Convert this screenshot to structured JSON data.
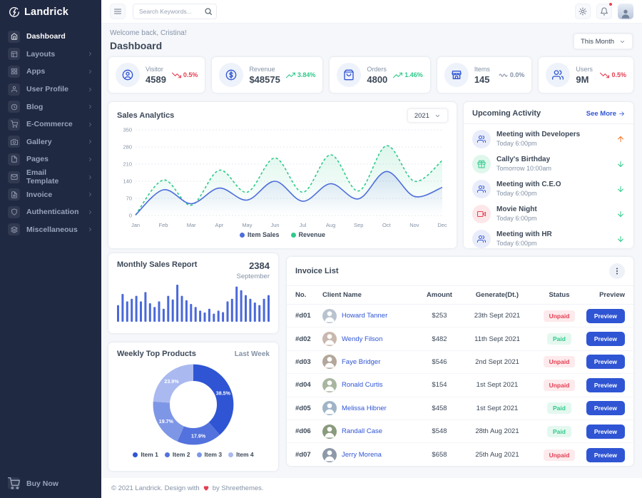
{
  "brand": {
    "name": "Landrick"
  },
  "topbar": {
    "search_placeholder": "Search Keywords..."
  },
  "header": {
    "welcome": "Welcome back, Cristina!",
    "title": "Dashboard",
    "period": "This Month"
  },
  "sidebar": {
    "buy_now": "Buy Now",
    "items": [
      {
        "label": "Dashboard",
        "icon": "home",
        "state": "active",
        "chevron": false
      },
      {
        "label": "Layouts",
        "icon": "layout",
        "state": "",
        "chevron": true
      },
      {
        "label": "Apps",
        "icon": "grid",
        "state": "",
        "chevron": true
      },
      {
        "label": "User Profile",
        "icon": "user",
        "state": "",
        "chevron": true
      },
      {
        "label": "Blog",
        "icon": "clock",
        "state": "",
        "chevron": true
      },
      {
        "label": "E-Commerce",
        "icon": "cart",
        "state": "",
        "chevron": true
      },
      {
        "label": "Gallery",
        "icon": "camera",
        "state": "",
        "chevron": true
      },
      {
        "label": "Pages",
        "icon": "file",
        "state": "",
        "chevron": true
      },
      {
        "label": "Email Template",
        "icon": "mail",
        "state": "",
        "chevron": true
      },
      {
        "label": "Invoice",
        "icon": "file-text",
        "state": "",
        "chevron": true
      },
      {
        "label": "Authentication",
        "icon": "shield",
        "state": "",
        "chevron": true
      },
      {
        "label": "Miscellaneous",
        "icon": "layers",
        "state": "",
        "chevron": true
      }
    ]
  },
  "stats": [
    {
      "label": "Visitor",
      "value": "4589",
      "trend": "0.5%",
      "trend_class": "down",
      "trend_icon": "trend-down",
      "icon": "user-circle"
    },
    {
      "label": "Revenue",
      "value": "$48575",
      "trend": "3.84%",
      "trend_class": "up",
      "trend_icon": "trend-up",
      "icon": "dollar-circle"
    },
    {
      "label": "Orders",
      "value": "4800",
      "trend": "1.46%",
      "trend_class": "up",
      "trend_icon": "trend-up",
      "icon": "bag"
    },
    {
      "label": "Items",
      "value": "145",
      "trend": "0.0%",
      "trend_class": "flat",
      "trend_icon": "trend-flat",
      "icon": "store"
    },
    {
      "label": "Users",
      "value": "9M",
      "trend": "0.5%",
      "trend_class": "down",
      "trend_icon": "trend-down",
      "icon": "users"
    }
  ],
  "chart_data": [
    {
      "id": "sales",
      "type": "line",
      "title": "Sales Analytics",
      "year_select": "2021",
      "x": [
        "Jan",
        "Feb",
        "Mar",
        "Apr",
        "May",
        "Jun",
        "Jul",
        "Aug",
        "Sep",
        "Oct",
        "Nov",
        "Dec"
      ],
      "series": [
        {
          "name": "Item Sales",
          "color": "#4d6ddb",
          "style": "solid",
          "values": [
            2,
            105,
            48,
            112,
            63,
            140,
            58,
            130,
            68,
            180,
            78,
            115
          ]
        },
        {
          "name": "Revenue",
          "color": "#2eca8b",
          "style": "dashed",
          "values": [
            2,
            145,
            42,
            185,
            95,
            235,
            95,
            248,
            100,
            285,
            140,
            225
          ]
        }
      ],
      "ylim": [
        0,
        350
      ],
      "yticks": [
        0,
        70,
        140,
        210,
        280,
        350
      ],
      "grid": "dotted-horizontal",
      "legend_position": "bottom"
    },
    {
      "id": "monthly",
      "type": "bar",
      "title": "Monthly Sales Report",
      "total": "2384",
      "month": "September",
      "color": "#4a68d9",
      "values": [
        45,
        75,
        55,
        62,
        70,
        55,
        80,
        50,
        40,
        55,
        35,
        70,
        60,
        100,
        70,
        58,
        48,
        40,
        30,
        25,
        35,
        22,
        30,
        26,
        55,
        62,
        95,
        85,
        72,
        62,
        52,
        45,
        62,
        72
      ]
    },
    {
      "id": "products",
      "type": "pie",
      "title": "Weekly Top Products",
      "period": "Last Week",
      "slices": [
        {
          "label": "Item 1",
          "value": 38.5,
          "color": "#2f55d4"
        },
        {
          "label": "Item 2",
          "value": 17.9,
          "color": "#5372dd"
        },
        {
          "label": "Item 3",
          "value": 19.7,
          "color": "#7e96e6"
        },
        {
          "label": "Item 4",
          "value": 23.9,
          "color": "#aab9ef"
        }
      ]
    }
  ],
  "activity": {
    "title": "Upcoming Activity",
    "see_more": "See More",
    "items": [
      {
        "title": "Meeting with Developers",
        "time": "Today 6:00pm",
        "icon": "users",
        "icon_class": "blue",
        "arrow_icon": "arrow-up",
        "arrow_class": "up"
      },
      {
        "title": "Cally's Birthday",
        "time": "Tomorrow 10:00am",
        "icon": "gift",
        "icon_class": "green",
        "arrow_icon": "arrow-down",
        "arrow_class": "down"
      },
      {
        "title": "Meeting with C.E.O",
        "time": "Today 6:00pm",
        "icon": "users",
        "icon_class": "blue",
        "arrow_icon": "arrow-down",
        "arrow_class": "down"
      },
      {
        "title": "Movie Night",
        "time": "Today 6:00pm",
        "icon": "film",
        "icon_class": "red",
        "arrow_icon": "arrow-down",
        "arrow_class": "down"
      },
      {
        "title": "Meeting with HR",
        "time": "Today 6:00pm",
        "icon": "users",
        "icon_class": "blue",
        "arrow_icon": "arrow-down",
        "arrow_class": "down"
      }
    ]
  },
  "invoice": {
    "title": "Invoice List",
    "columns": [
      "No.",
      "Client Name",
      "Amount",
      "Generate(Dt.)",
      "Status",
      "Preview"
    ],
    "preview_label": "Preview",
    "rows": [
      {
        "no": "#d01",
        "name": "Howard Tanner",
        "amount": "$253",
        "date": "23th Sept 2021",
        "status": "Unpaid",
        "avatar_bg": "#b9c3cf"
      },
      {
        "no": "#d02",
        "name": "Wendy Filson",
        "amount": "$482",
        "date": "11th Sept 2021",
        "status": "Paid",
        "avatar_bg": "#c9b8ae"
      },
      {
        "no": "#d03",
        "name": "Faye Bridger",
        "amount": "$546",
        "date": "2nd Sept 2021",
        "status": "Unpaid",
        "avatar_bg": "#b3a79b"
      },
      {
        "no": "#d04",
        "name": "Ronald Curtis",
        "amount": "$154",
        "date": "1st Sept 2021",
        "status": "Unpaid",
        "avatar_bg": "#a8b5a0"
      },
      {
        "no": "#d05",
        "name": "Melissa Hibner",
        "amount": "$458",
        "date": "1st Sept 2021",
        "status": "Paid",
        "avatar_bg": "#9fb4c7"
      },
      {
        "no": "#d06",
        "name": "Randall Case",
        "amount": "$548",
        "date": "28th Aug 2021",
        "status": "Paid",
        "avatar_bg": "#8a9a7d"
      },
      {
        "no": "#d07",
        "name": "Jerry Morena",
        "amount": "$658",
        "date": "25th Aug 2021",
        "status": "Unpaid",
        "avatar_bg": "#8d99a8"
      }
    ]
  },
  "footer": {
    "copyright": "© 2021 Landrick. Design with",
    "by": "by Shreethemes."
  },
  "colors": {
    "primary": "#2f55d4",
    "success": "#2eca8b",
    "danger": "#e43f52",
    "warning": "#f17425",
    "sidebar": "#202942",
    "muted": "#8492a6",
    "heading": "#3c4858"
  }
}
